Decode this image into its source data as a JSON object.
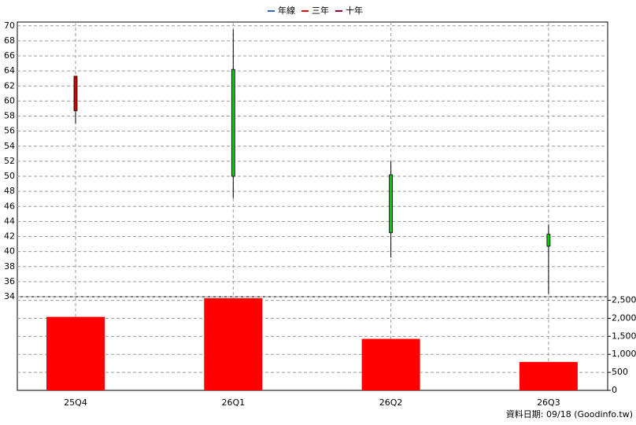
{
  "chart_data": {
    "type": "candlestick",
    "legend": [
      {
        "name": "年線",
        "color": "#3366cc"
      },
      {
        "name": "三年",
        "color": "#ff0000"
      },
      {
        "name": "十年",
        "color": "#990033"
      }
    ],
    "categories": [
      "25Q4",
      "26Q1",
      "26Q2",
      "26Q3"
    ],
    "open": [
      63.3,
      50,
      42.5,
      40.7
    ],
    "high": [
      63.3,
      69.5,
      52,
      43.6
    ],
    "low": [
      57,
      47.1,
      39.2,
      34.4
    ],
    "close": [
      58.7,
      64.2,
      50.2,
      42.3
    ],
    "up_color": "#00cc00",
    "down_color": "#cc0000",
    "ylim": [
      34,
      70.5
    ],
    "yticks": [
      34,
      36,
      38,
      40,
      42,
      44,
      46,
      48,
      50,
      52,
      54,
      56,
      58,
      60,
      62,
      64,
      66,
      68,
      70
    ],
    "volume": {
      "values": [
        2040,
        2560,
        1430,
        790
      ],
      "color": "#ff0000"
    },
    "y2lim": [
      0,
      2600
    ],
    "y2ticks": [
      0,
      500,
      {
        "value": 1000,
        "label": "1,000"
      },
      {
        "value": 1500,
        "label": "1,500"
      },
      {
        "value": 2000,
        "label": "2,000"
      },
      {
        "value": 2500,
        "label": "2,500"
      }
    ],
    "grid": true,
    "footnote": "資料日期: 09/18  (Goodinfo.tw)"
  }
}
